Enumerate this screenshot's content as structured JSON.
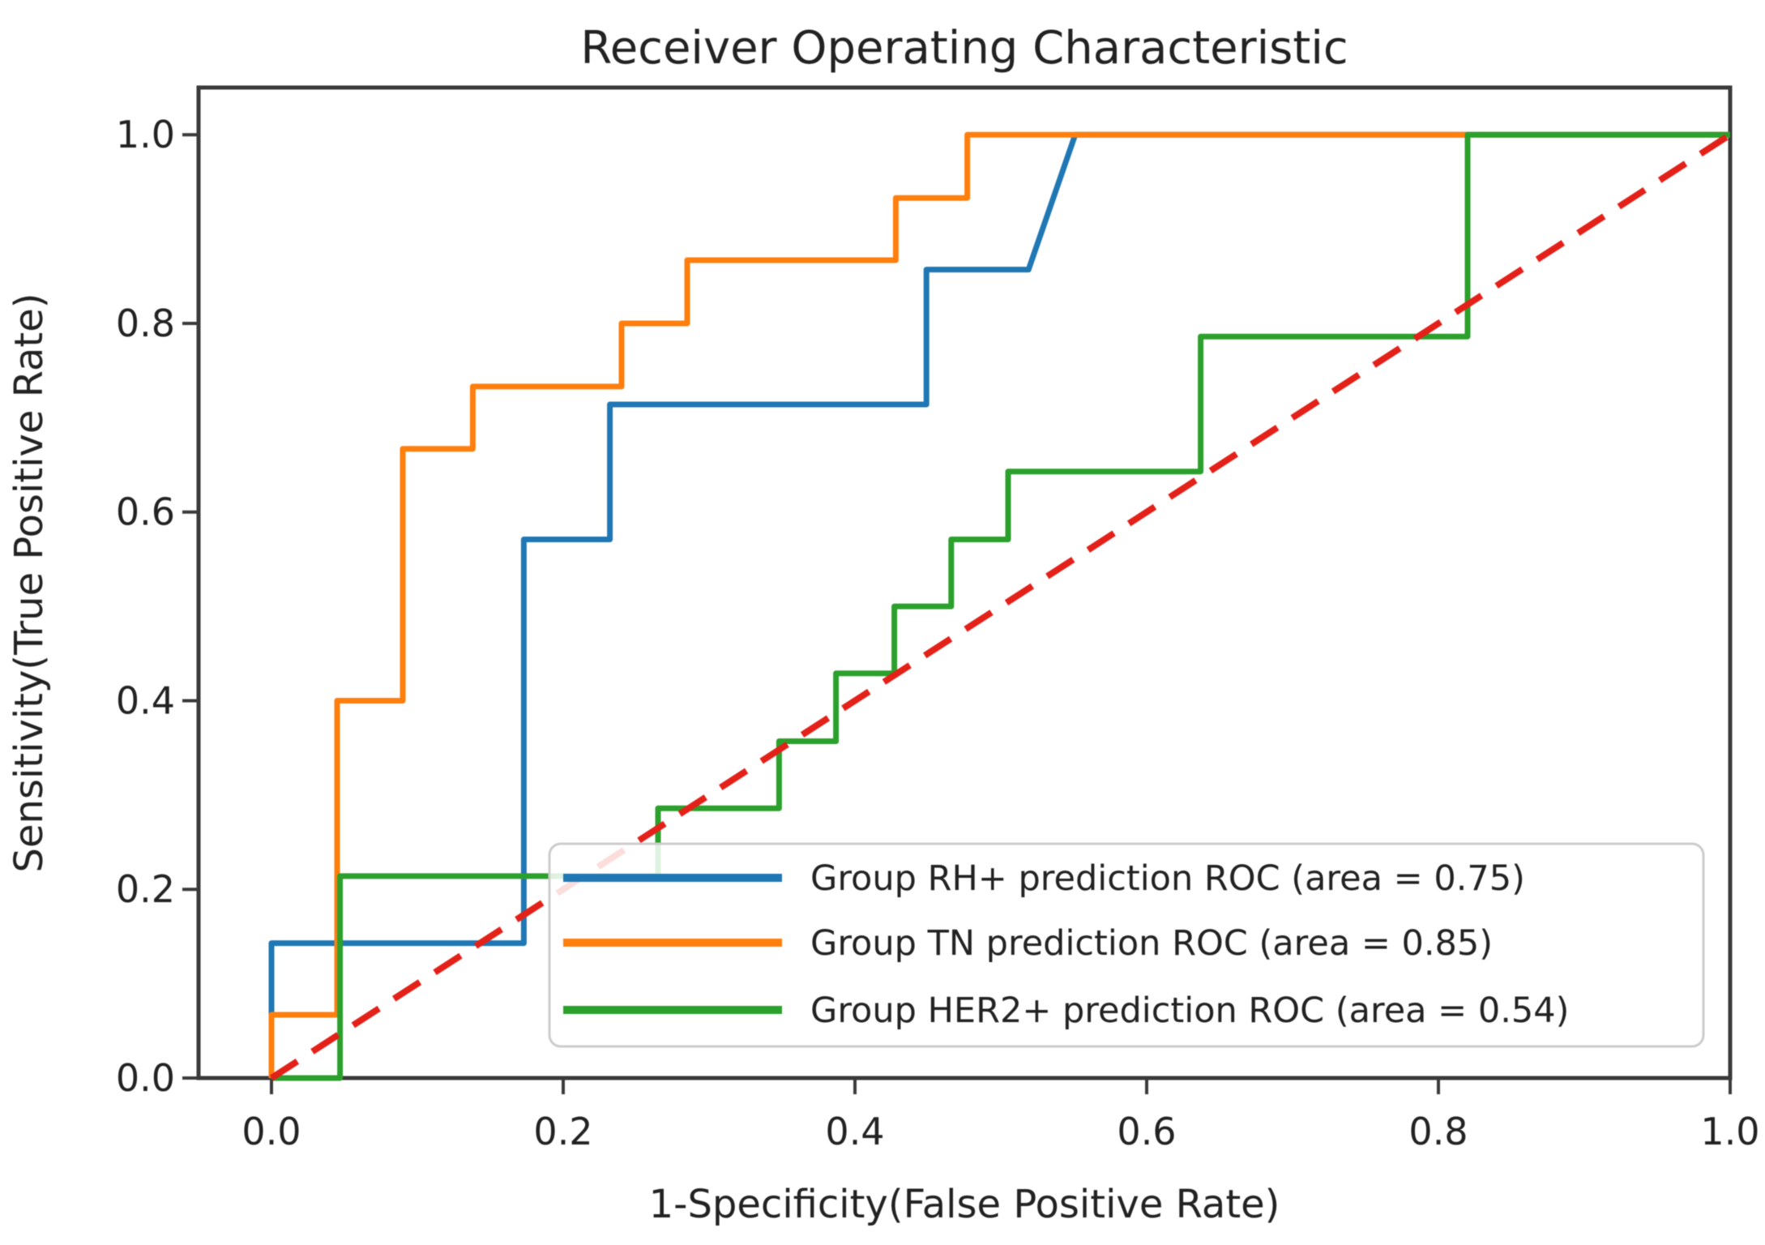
{
  "chart_data": {
    "type": "line",
    "subtype": "roc-step-curves",
    "title": "Receiver Operating Characteristic",
    "xlabel": "1-Specificity(False Positive Rate)",
    "ylabel": "Sensitivity(True Positive Rate)",
    "xlim": [
      -0.05,
      1.0
    ],
    "ylim": [
      0.0,
      1.05
    ],
    "xticks": [
      0.0,
      0.2,
      0.4,
      0.6,
      0.8,
      1.0
    ],
    "yticks": [
      0.0,
      0.2,
      0.4,
      0.6,
      0.8,
      1.0
    ],
    "grid": false,
    "legend_position": "lower right",
    "colors": {
      "rh_curve": "#1f77b4",
      "tn_curve": "#ff7f0e",
      "her2_curve": "#2ca02c",
      "chance_line": "#e32119",
      "text": "#222222",
      "spine": "#3a3a3a",
      "legend_border": "#cccccc"
    },
    "series": [
      {
        "name": "Group RH+ prediction ROC (area = 0.75)",
        "short_name": "rh-plus",
        "auc": 0.75,
        "color": "#1f77b4",
        "style": "solid",
        "legend": true,
        "points": [
          [
            0,
            0
          ],
          [
            0,
            0.143
          ],
          [
            0.173,
            0.143
          ],
          [
            0.173,
            0.571
          ],
          [
            0.232,
            0.571
          ],
          [
            0.232,
            0.714
          ],
          [
            0.449,
            0.714
          ],
          [
            0.449,
            0.857
          ],
          [
            0.519,
            0.857
          ],
          [
            0.551,
            1.0
          ],
          [
            1.0,
            1.0
          ]
        ]
      },
      {
        "name": "Group TN prediction ROC (area = 0.85)",
        "short_name": "tn",
        "auc": 0.85,
        "color": "#ff7f0e",
        "style": "solid",
        "legend": true,
        "points": [
          [
            0,
            0
          ],
          [
            0,
            0.067
          ],
          [
            0.045,
            0.067
          ],
          [
            0.045,
            0.4
          ],
          [
            0.09,
            0.4
          ],
          [
            0.09,
            0.667
          ],
          [
            0.138,
            0.667
          ],
          [
            0.138,
            0.733
          ],
          [
            0.24,
            0.733
          ],
          [
            0.24,
            0.8
          ],
          [
            0.285,
            0.8
          ],
          [
            0.285,
            0.867
          ],
          [
            0.428,
            0.867
          ],
          [
            0.428,
            0.933
          ],
          [
            0.477,
            0.933
          ],
          [
            0.477,
            1.0
          ],
          [
            1.0,
            1.0
          ]
        ]
      },
      {
        "name": "Group HER2+ prediction ROC (area = 0.54)",
        "short_name": "her2-plus",
        "auc": 0.54,
        "color": "#2ca02c",
        "style": "solid",
        "legend": true,
        "points": [
          [
            0,
            0
          ],
          [
            0.047,
            0
          ],
          [
            0.047,
            0.214
          ],
          [
            0.265,
            0.214
          ],
          [
            0.265,
            0.286
          ],
          [
            0.348,
            0.286
          ],
          [
            0.348,
            0.357
          ],
          [
            0.387,
            0.357
          ],
          [
            0.387,
            0.429
          ],
          [
            0.427,
            0.429
          ],
          [
            0.427,
            0.5
          ],
          [
            0.466,
            0.5
          ],
          [
            0.466,
            0.571
          ],
          [
            0.505,
            0.571
          ],
          [
            0.505,
            0.643
          ],
          [
            0.637,
            0.643
          ],
          [
            0.637,
            0.786
          ],
          [
            0.82,
            0.786
          ],
          [
            0.82,
            1.0
          ],
          [
            1.0,
            1.0
          ]
        ]
      },
      {
        "name": "chance-diagonal",
        "short_name": "chance",
        "color": "#e32119",
        "style": "dashed",
        "legend": false,
        "points": [
          [
            0,
            0
          ],
          [
            1,
            1
          ]
        ]
      }
    ]
  }
}
